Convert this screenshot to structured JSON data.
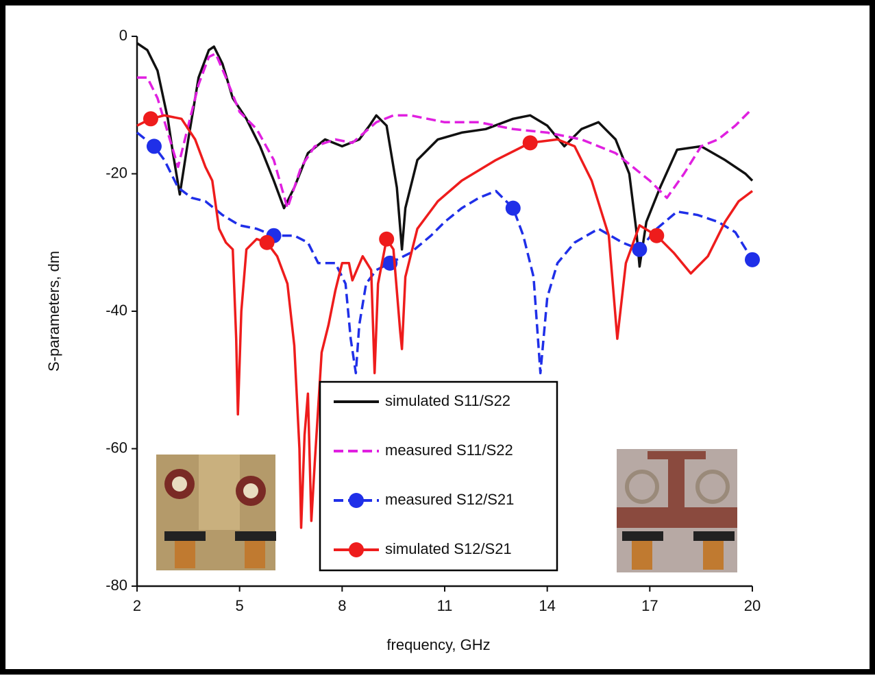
{
  "chart_data": {
    "type": "line",
    "xlabel": "frequency, GHz",
    "ylabel": "S-parameters, dm",
    "xlim": [
      2,
      20
    ],
    "ylim": [
      -80,
      0
    ],
    "xticks": [
      2,
      5,
      8,
      11,
      14,
      17,
      20
    ],
    "yticks": [
      0,
      -20,
      -40,
      -60,
      -80
    ],
    "legend": "lower center",
    "series": [
      {
        "name": "simulated S11/S22",
        "color": "#111111",
        "style": "solid",
        "marker": "none",
        "x": [
          2,
          2.3,
          2.6,
          2.9,
          3.05,
          3.25,
          3.5,
          3.8,
          4.1,
          4.25,
          4.5,
          4.8,
          5.2,
          5.6,
          6,
          6.3,
          6.6,
          7,
          7.5,
          8,
          8.5,
          8.8,
          9,
          9.3,
          9.6,
          9.75,
          9.85,
          10.2,
          10.8,
          11.5,
          12.2,
          13,
          13.5,
          14,
          14.5,
          15,
          15.5,
          16,
          16.4,
          16.6,
          16.7,
          16.9,
          17.3,
          17.8,
          18.5,
          19.2,
          19.8,
          20
        ],
        "values": [
          -1,
          -2,
          -5,
          -12,
          -17,
          -23,
          -15,
          -6,
          -2,
          -1.5,
          -4,
          -9,
          -12,
          -16,
          -21,
          -25,
          -22,
          -17,
          -15,
          -16,
          -15,
          -13,
          -11.5,
          -13,
          -22,
          -31,
          -25,
          -18,
          -15,
          -14,
          -13.5,
          -12,
          -11.5,
          -13,
          -16,
          -13.5,
          -12.5,
          -15,
          -20,
          -28,
          -33.5,
          -27,
          -22,
          -16.5,
          -16,
          -18,
          -20,
          -21
        ]
      },
      {
        "name": "measured S11/S22",
        "color": "#e020e0",
        "style": "dashed",
        "marker": "none",
        "x": [
          2,
          2.3,
          2.6,
          2.9,
          3.2,
          3.5,
          3.8,
          4.1,
          4.3,
          4.6,
          5,
          5.5,
          6,
          6.4,
          6.8,
          7.2,
          7.8,
          8.3,
          9,
          9.5,
          10,
          11,
          12,
          13,
          14,
          15,
          16,
          17,
          17.5,
          18,
          18.5,
          19,
          19.5,
          20
        ],
        "values": [
          -6,
          -6,
          -9,
          -14,
          -19,
          -13,
          -7,
          -3,
          -2.5,
          -6,
          -11,
          -13.5,
          -18,
          -25,
          -19,
          -16,
          -15,
          -15.5,
          -12.5,
          -11.5,
          -11.5,
          -12.5,
          -12.5,
          -13.5,
          -14,
          -15,
          -17,
          -21,
          -23.5,
          -20,
          -16,
          -15,
          -13,
          -10.5
        ]
      },
      {
        "name": "measured S12/S21",
        "color": "#1f2fe8",
        "style": "dashed",
        "marker": "circle",
        "x": [
          2,
          2.5,
          2.8,
          3.2,
          3.6,
          4,
          4.5,
          5,
          5.5,
          6,
          6.6,
          7,
          7.3,
          7.8,
          8.1,
          8.25,
          8.4,
          8.5,
          8.7,
          9,
          9.4,
          10,
          10.6,
          11,
          11.5,
          12,
          12.5,
          13,
          13.3,
          13.6,
          13.8,
          14,
          14.3,
          14.8,
          15.5,
          16.2,
          16.7,
          17.2,
          17.8,
          18.4,
          19,
          19.5,
          20
        ],
        "values": [
          -14,
          -16,
          -18,
          -22,
          -23.5,
          -24,
          -26,
          -27.5,
          -28,
          -29,
          -29,
          -30,
          -33,
          -33,
          -36,
          -44,
          -49,
          -42,
          -36,
          -34,
          -33,
          -31.5,
          -29,
          -27,
          -25,
          -23.5,
          -22.5,
          -25,
          -29,
          -35,
          -49,
          -38,
          -33,
          -30,
          -28,
          -30,
          -31,
          -28,
          -25.5,
          -26,
          -27,
          -28.5,
          -32.5
        ]
      },
      {
        "name": "simulated S12/S21",
        "color": "#ee1c1c",
        "style": "solid",
        "marker": "circle",
        "x": [
          2,
          2.4,
          2.8,
          3.3,
          3.7,
          4,
          4.2,
          4.4,
          4.6,
          4.8,
          4.9,
          4.95,
          5.05,
          5.2,
          5.5,
          5.8,
          6.1,
          6.4,
          6.6,
          6.75,
          6.8,
          6.9,
          7,
          7.1,
          7.2,
          7.4,
          7.6,
          7.8,
          8,
          8.2,
          8.3,
          8.6,
          8.85,
          8.95,
          9.05,
          9.3,
          9.5,
          9.7,
          9.75,
          9.85,
          10.2,
          10.8,
          11.5,
          12.5,
          13.5,
          14.3,
          14.8,
          15.3,
          15.8,
          16.05,
          16.3,
          16.7,
          17.2,
          17.7,
          18.2,
          18.7,
          19.2,
          19.6,
          20
        ],
        "values": [
          -13,
          -12,
          -11.5,
          -12,
          -15,
          -19,
          -21,
          -28,
          -30,
          -31,
          -44,
          -55,
          -40,
          -31,
          -29.5,
          -30,
          -32,
          -36,
          -45,
          -60,
          -71.5,
          -58,
          -52,
          -70.5,
          -62,
          -46,
          -42,
          -37,
          -33,
          -33,
          -35.5,
          -32,
          -34,
          -49,
          -36,
          -29.5,
          -31,
          -43,
          -45.5,
          -35,
          -28,
          -24,
          -21,
          -18,
          -15.5,
          -15,
          -16,
          -21,
          -29,
          -44,
          -33,
          -27.5,
          -29,
          -31.5,
          -34.5,
          -32,
          -27,
          -24,
          -22.5
        ]
      }
    ]
  }
}
